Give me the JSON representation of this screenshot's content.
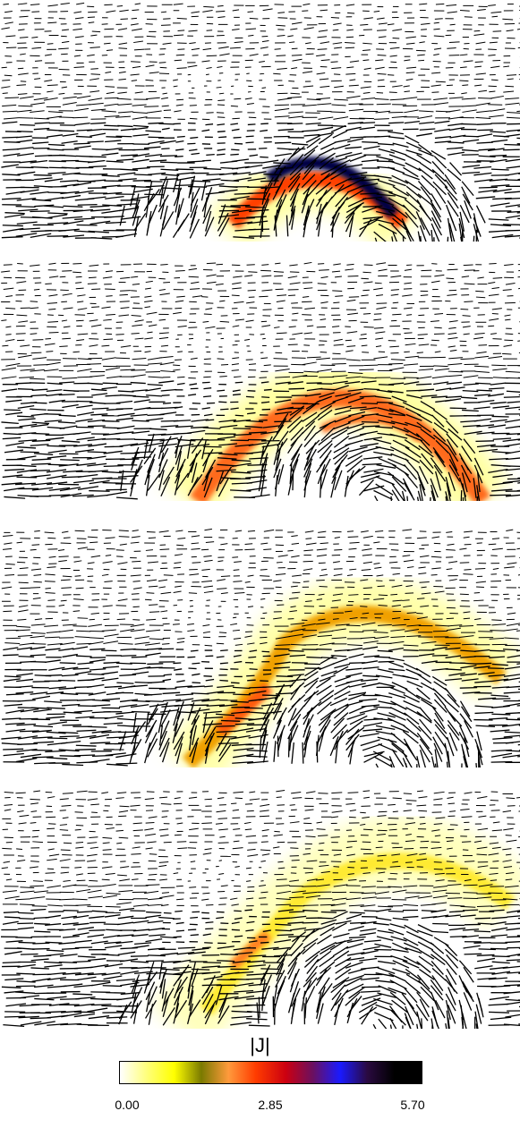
{
  "colorbar": {
    "title": "|J|",
    "min_label": "0.00",
    "mid_label": "2.85",
    "max_label": "5.70",
    "colors": [
      "#ffffff",
      "#ffff7a",
      "#ffff00",
      "#7a7a00",
      "#ff9a3c",
      "#ff3c00",
      "#cc0010",
      "#6a1060",
      "#1a1aff",
      "#2a0a40",
      "#000000",
      "#000000"
    ]
  },
  "panels": [
    {
      "id": "panel-1",
      "arc_color": "#ff4000",
      "core_color": "#000044",
      "glow_color": "#ffff60"
    },
    {
      "id": "panel-2",
      "arc_color": "#ff6a1a",
      "core_color": "#ff4020",
      "glow_color": "#ffff60"
    },
    {
      "id": "panel-3",
      "arc_color": "#f0a000",
      "core_color": "#ff5a10",
      "glow_color": "#ffff70"
    },
    {
      "id": "panel-4",
      "arc_color": "#ffea30",
      "core_color": "#ff8020",
      "glow_color": "#ffff90"
    }
  ],
  "arrow_color": "#000000"
}
